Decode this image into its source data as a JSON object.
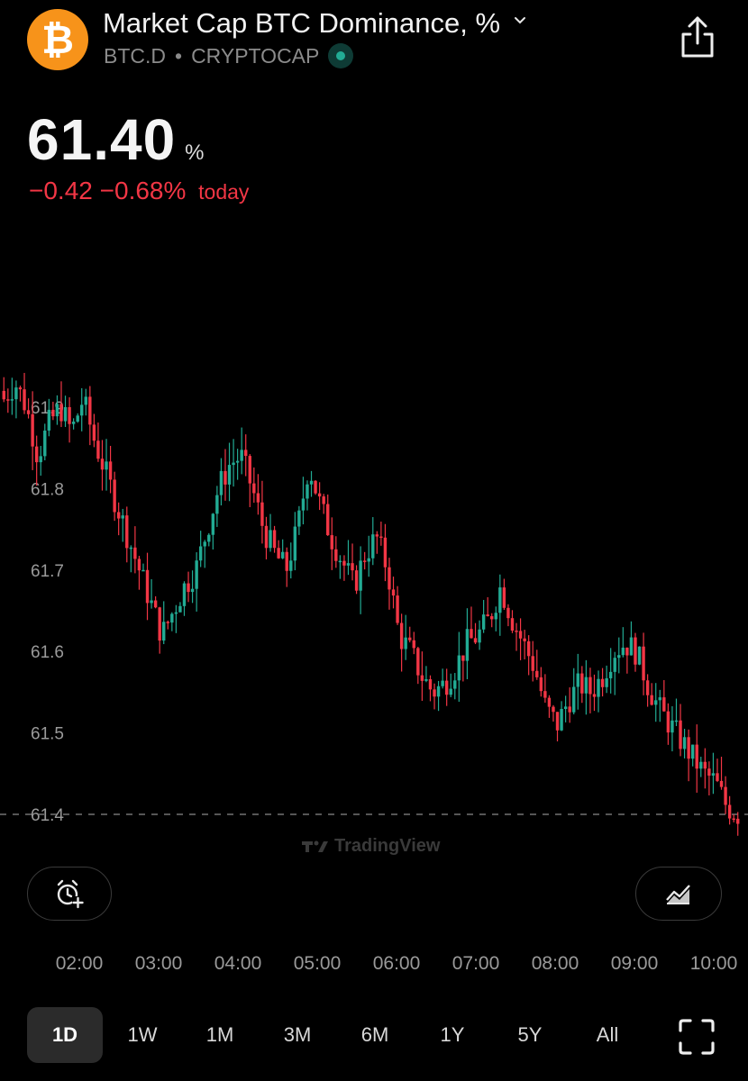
{
  "header": {
    "title": "Market Cap BTC Dominance, %",
    "symbol": "BTC.D",
    "separator": "•",
    "exchange": "CRYPTOCAP",
    "logo_glyph": "₿",
    "logo_color": "#f7931a"
  },
  "quote": {
    "price": "61.40",
    "unit": "%",
    "change": "−0.42",
    "change_pct": "−0.68%",
    "period": "today",
    "down_color": "#f23645",
    "up_color": "#22ab94"
  },
  "watermark": "TradingView",
  "icons": {
    "share": "share-icon",
    "alert": "add-alert-icon",
    "indicators": "indicators-icon",
    "fullscreen": "fullscreen-icon",
    "title_dropdown": "chevron-down-icon"
  },
  "chart_data": {
    "type": "candlestick",
    "y_ticks": [
      "61.9",
      "61.8",
      "61.7",
      "61.6",
      "61.5",
      "61.4"
    ],
    "ylim": [
      61.38,
      62.0
    ],
    "x_ticks": [
      "02:00",
      "03:00",
      "04:00",
      "05:00",
      "06:00",
      "07:00",
      "08:00",
      "09:00",
      "10:00"
    ],
    "last_price_line": 61.4,
    "close_path": [
      61.91,
      61.93,
      61.9,
      61.84,
      61.88,
      61.9,
      61.87,
      61.91,
      61.86,
      61.82,
      61.78,
      61.74,
      61.7,
      61.66,
      61.62,
      61.65,
      61.68,
      61.7,
      61.75,
      61.8,
      61.83,
      61.84,
      61.8,
      61.75,
      61.72,
      61.7,
      61.75,
      61.83,
      61.78,
      61.74,
      61.71,
      61.68,
      61.72,
      61.74,
      61.7,
      61.62,
      61.6,
      61.57,
      61.55,
      61.56,
      61.58,
      61.61,
      61.62,
      61.64,
      61.68,
      61.64,
      61.61,
      61.58,
      61.53,
      61.51,
      61.54,
      61.56,
      61.55,
      61.57,
      61.6,
      61.61,
      61.6,
      61.56,
      61.53,
      61.51,
      61.49,
      61.47,
      61.45,
      61.44,
      61.41,
      61.4
    ]
  },
  "time_ranges": [
    "1D",
    "1W",
    "1M",
    "3M",
    "6M",
    "1Y",
    "5Y",
    "All"
  ],
  "active_range": "1D"
}
